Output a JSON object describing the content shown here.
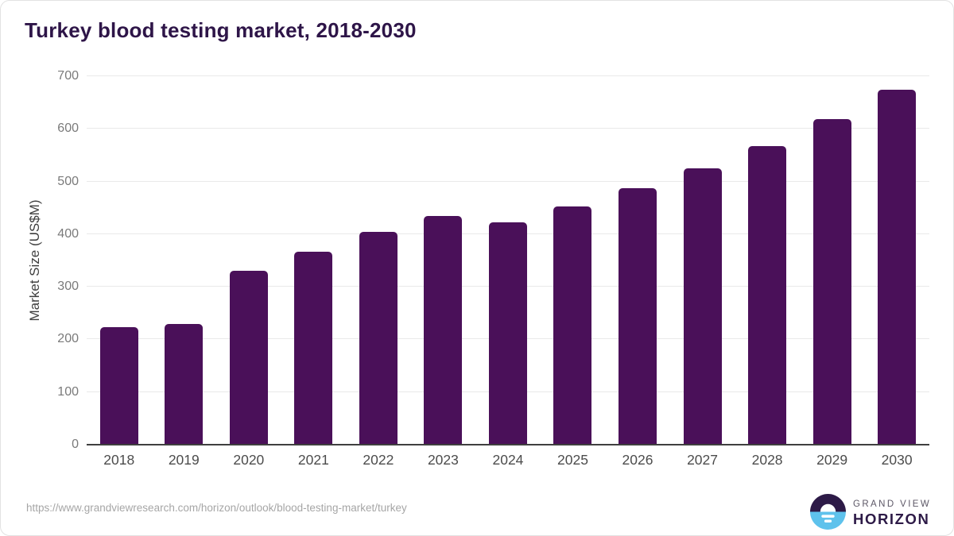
{
  "page": {
    "title": "Turkey blood testing market, 2018-2030"
  },
  "chart_data": {
    "type": "bar",
    "title": "Turkey blood testing market, 2018-2030",
    "categories": [
      "2018",
      "2019",
      "2020",
      "2021",
      "2022",
      "2023",
      "2024",
      "2025",
      "2026",
      "2027",
      "2028",
      "2029",
      "2030"
    ],
    "values": [
      224,
      229,
      330,
      366,
      405,
      434,
      423,
      453,
      488,
      525,
      568,
      618,
      675
    ],
    "xlabel": "",
    "ylabel": "Market Size (US$M)",
    "ylim": [
      0,
      700
    ],
    "yticks": [
      0,
      100,
      200,
      300,
      400,
      500,
      600,
      700
    ],
    "grid": true,
    "legend": false,
    "bar_color": "#4a1059"
  },
  "colors": {
    "accent_purple": "#4a1059",
    "title_purple": "#2e1548",
    "logo_dark_purple": "#2d1a47",
    "logo_light_blue": "#5ec2ec",
    "gridline": "#e9e9e9",
    "axis_line": "#3f3f3f"
  },
  "footer": {
    "source_url": "https://www.grandviewresearch.com/horizon/outlook/blood-testing-market/turkey",
    "logo": {
      "line1": "GRAND VIEW",
      "line2": "HORIZON"
    }
  }
}
